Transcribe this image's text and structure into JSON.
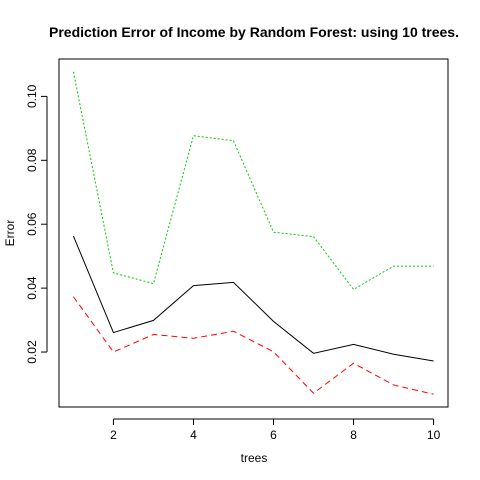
{
  "chart_data": {
    "type": "line",
    "title": "Prediction Error of Income by Random Forest: using 10 trees.",
    "xlabel": "trees",
    "ylabel": "Error",
    "x": [
      1,
      2,
      3,
      4,
      5,
      6,
      7,
      8,
      9,
      10
    ],
    "xlim": [
      0.64,
      10.36
    ],
    "ylim": [
      0.0028,
      0.1117
    ],
    "x_ticks": [
      2,
      4,
      6,
      8,
      10
    ],
    "y_ticks": [
      0.02,
      0.04,
      0.06,
      0.08,
      0.1
    ],
    "x_tick_labels": [
      "2",
      "4",
      "6",
      "8",
      "10"
    ],
    "y_tick_labels": [
      "0.02",
      "0.04",
      "0.06",
      "0.08",
      "0.10"
    ],
    "grid": false,
    "series": [
      {
        "values": [
          0.0563,
          0.0261,
          0.0299,
          0.0408,
          0.0418,
          0.0296,
          0.0196,
          0.0224,
          0.0193,
          0.0172
        ],
        "color": "#000000",
        "style": "solid"
      },
      {
        "values": [
          0.0373,
          0.02,
          0.0255,
          0.0243,
          0.0265,
          0.0201,
          0.0071,
          0.0165,
          0.0097,
          0.0068
        ],
        "color": "#ff0000",
        "style": "dashed"
      },
      {
        "values": [
          0.1077,
          0.0448,
          0.0414,
          0.0877,
          0.0861,
          0.0575,
          0.0561,
          0.0396,
          0.0469,
          0.0469
        ],
        "color": "#00cd00",
        "style": "dotted"
      }
    ]
  }
}
